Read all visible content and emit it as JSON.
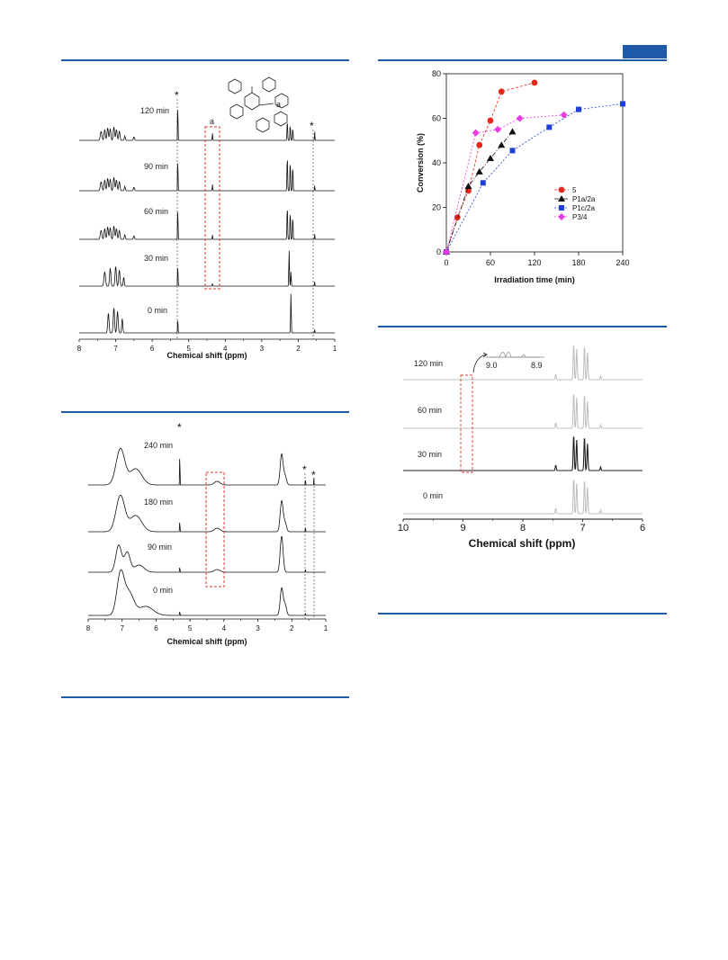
{
  "layout_rules": {
    "accent": "#1f5aa8",
    "box_color": "#e23a2e"
  },
  "fig_a": {
    "times": [
      "120 min",
      "90 min",
      "60 min",
      "30 min",
      "0 min"
    ],
    "xlabel": "Chemical shift (ppm)",
    "ticks": [
      "8",
      "7",
      "6",
      "5",
      "4",
      "3",
      "2",
      "1"
    ],
    "peak_label": "a",
    "struct_label": "a",
    "star": "*"
  },
  "fig_b": {
    "times": [
      "240 min",
      "180 min",
      "90 min",
      "0 min"
    ],
    "xlabel": "Chemical shift (ppm)",
    "ticks": [
      "8",
      "7",
      "6",
      "5",
      "4",
      "3",
      "2",
      "1"
    ],
    "star": "*"
  },
  "fig_d": {
    "times": [
      "120 min",
      "60 min",
      "30 min",
      "0 min"
    ],
    "xlabel": "Chemical shift (ppm)",
    "ticks": [
      "10",
      "9",
      "8",
      "7",
      "6"
    ],
    "inset_ticks": [
      "9.0",
      "8.9"
    ]
  },
  "chart_data": {
    "type": "scatter",
    "xlabel": "Irradiation time (min)",
    "ylabel": "Conversion (%)",
    "xlim": [
      0,
      240
    ],
    "ylim": [
      0,
      80
    ],
    "xticks": [
      0,
      60,
      120,
      180,
      240
    ],
    "yticks": [
      0,
      20,
      40,
      60,
      80
    ],
    "legend_position": "right",
    "series": [
      {
        "name": "5",
        "color": "#e8271c",
        "marker": "circle",
        "x": [
          0,
          15,
          30,
          45,
          60,
          75,
          120
        ],
        "y": [
          0,
          15.5,
          27.5,
          48,
          59,
          72,
          76
        ]
      },
      {
        "name": "P1a/2a",
        "color": "#111111",
        "marker": "triangle",
        "x": [
          0,
          30,
          45,
          60,
          75,
          90
        ],
        "y": [
          0,
          29.5,
          36,
          42,
          48,
          54
        ]
      },
      {
        "name": "P1c/2a",
        "color": "#1f3fd8",
        "marker": "square",
        "x": [
          0,
          50,
          90,
          140,
          180,
          240
        ],
        "y": [
          0,
          31,
          45.5,
          56,
          64,
          66.5
        ]
      },
      {
        "name": "P3/4",
        "color": "#e83ce0",
        "marker": "diamond",
        "x": [
          0,
          40,
          70,
          100,
          160
        ],
        "y": [
          0,
          53.5,
          55,
          60,
          61.5
        ]
      }
    ]
  }
}
